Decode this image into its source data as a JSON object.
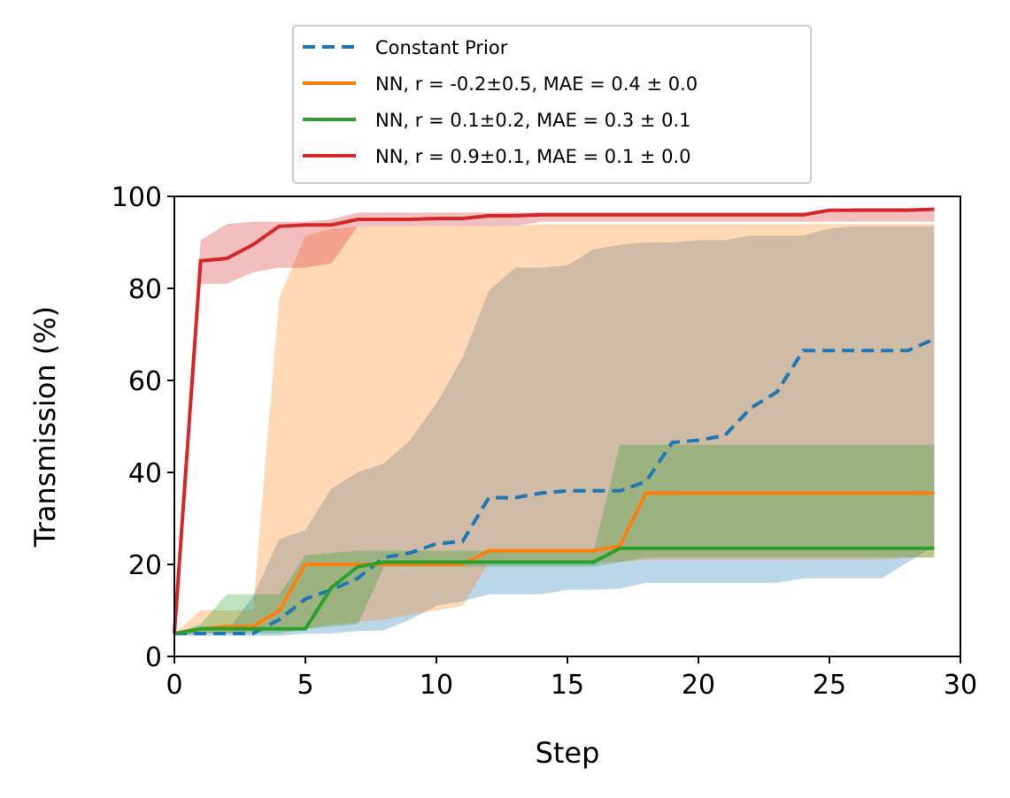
{
  "chart_data": {
    "type": "line",
    "xlabel": "Step",
    "ylabel": "Transmission (%)",
    "x": [
      0,
      1,
      2,
      3,
      4,
      5,
      6,
      7,
      8,
      9,
      10,
      11,
      12,
      13,
      14,
      15,
      16,
      17,
      18,
      19,
      20,
      21,
      22,
      23,
      24,
      25,
      26,
      27,
      28,
      29
    ],
    "xlim": [
      0,
      30
    ],
    "xticks": [
      0,
      5,
      10,
      15,
      20,
      25,
      30
    ],
    "ylim": [
      0,
      100
    ],
    "yticks": [
      0,
      20,
      40,
      60,
      80,
      100
    ],
    "legend": "upper center outside",
    "series": [
      {
        "name": "Constant Prior",
        "color": "#1f77b4",
        "dashed": true,
        "values": [
          5,
          5,
          5,
          5,
          8,
          12.5,
          14.5,
          17,
          21.5,
          22.5,
          24.5,
          25,
          34.5,
          34.5,
          35.5,
          36,
          36,
          36,
          38,
          46.5,
          47,
          48,
          54,
          57.5,
          66.5,
          66.5,
          66.5,
          66.5,
          66.5,
          69
        ],
        "lower": [
          4.5,
          4.5,
          4.5,
          4.5,
          4.5,
          5,
          5,
          5.5,
          5.7,
          8,
          11,
          12,
          13.5,
          13.5,
          13.5,
          14.5,
          14.5,
          14.7,
          16,
          16,
          16,
          16,
          16,
          16,
          17,
          17,
          17,
          17,
          20.5,
          24
        ],
        "upper": [
          5,
          5.5,
          5.5,
          13,
          25.5,
          27.5,
          36.5,
          40,
          42,
          47,
          55,
          65,
          79.5,
          84.5,
          84.5,
          85,
          88.5,
          89.5,
          90,
          90,
          90.5,
          90.5,
          91.5,
          91.5,
          91.5,
          93,
          93.5,
          93.5,
          93.5,
          93.5
        ]
      },
      {
        "name": "NN, r = -0.2±0.5, MAE = 0.4 ± 0.0",
        "color": "#ff7f0e",
        "dashed": false,
        "values": [
          5,
          6,
          6.5,
          6.5,
          10,
          20,
          20,
          20,
          20,
          20,
          20,
          20,
          23,
          23,
          23,
          23,
          23,
          24,
          35.5,
          35.5,
          35.5,
          35.5,
          35.5,
          35.5,
          35.5,
          35.5,
          35.5,
          35.5,
          35.5,
          35.5
        ],
        "lower": [
          4.5,
          5,
          5,
          5.5,
          6,
          6,
          7,
          7.5,
          8,
          9,
          10,
          11,
          20.5,
          20.5,
          20.5,
          20.5,
          20.5,
          20.5,
          21,
          21,
          21,
          21,
          21,
          21,
          21,
          21,
          21,
          21,
          21.5,
          21.5
        ],
        "upper": [
          5,
          10,
          10,
          10,
          78,
          91.5,
          93,
          93.5,
          93.5,
          93.5,
          93.5,
          93.5,
          93.5,
          93.5,
          94,
          94,
          94,
          94,
          94,
          94,
          94,
          94,
          94,
          94,
          94,
          94,
          94,
          94,
          94,
          94
        ]
      },
      {
        "name": "NN, r =  0.1±0.2, MAE = 0.3 ± 0.1",
        "color": "#2ca02c",
        "dashed": false,
        "values": [
          5,
          6,
          6,
          6,
          6,
          6,
          15,
          19.5,
          20.5,
          20.5,
          20.5,
          20.5,
          20.5,
          20.5,
          20.5,
          20.5,
          20.5,
          23.5,
          23.5,
          23.5,
          23.5,
          23.5,
          23.5,
          23.5,
          23.5,
          23.5,
          23.5,
          23.5,
          23.5,
          23.5
        ],
        "lower": [
          4.5,
          5,
          5,
          5,
          5,
          6,
          6.5,
          7,
          19.5,
          19.5,
          19.5,
          19.5,
          19.5,
          19.5,
          19.5,
          19.5,
          19.5,
          20.5,
          21.5,
          21.5,
          21.5,
          21.5,
          21.5,
          21.5,
          21.5,
          21.5,
          21.5,
          21.5,
          21.5,
          21.5
        ],
        "upper": [
          5,
          7,
          13.5,
          13.5,
          13.5,
          22,
          22.5,
          23,
          23,
          23,
          23,
          23,
          23,
          23,
          23,
          23,
          23,
          46,
          46,
          46,
          46,
          46,
          46,
          46,
          46,
          46,
          46,
          46,
          46,
          46
        ]
      },
      {
        "name": "NN, r =  0.9±0.1, MAE = 0.1 ± 0.0",
        "color": "#d62728",
        "dashed": false,
        "values": [
          5,
          86,
          86.5,
          89.5,
          93.5,
          93.8,
          93.8,
          95,
          95,
          95,
          95.2,
          95.2,
          95.8,
          95.8,
          96,
          96,
          96,
          96,
          96,
          96,
          96,
          96,
          96,
          96,
          96,
          97,
          97,
          97,
          97,
          97.2
        ],
        "lower": [
          4.5,
          81,
          81,
          83.5,
          84.5,
          84.5,
          85.5,
          93.5,
          93.5,
          93.5,
          93.5,
          93.5,
          93.5,
          93.5,
          94.5,
          94.5,
          94.5,
          94.5,
          94.5,
          94.5,
          94.5,
          94.5,
          94.5,
          94.5,
          94.5,
          94.5,
          94.5,
          94.5,
          94.5,
          94.5
        ],
        "upper": [
          5,
          90.5,
          94,
          94.5,
          94.5,
          94.5,
          95,
          96.5,
          96.5,
          96.5,
          96.5,
          96.5,
          96.5,
          96.5,
          96.5,
          96.5,
          96.5,
          96.5,
          96.5,
          96.5,
          96.5,
          96.5,
          96.5,
          96.5,
          96.5,
          97,
          97.5,
          97.5,
          97.5,
          97.5
        ]
      }
    ]
  }
}
